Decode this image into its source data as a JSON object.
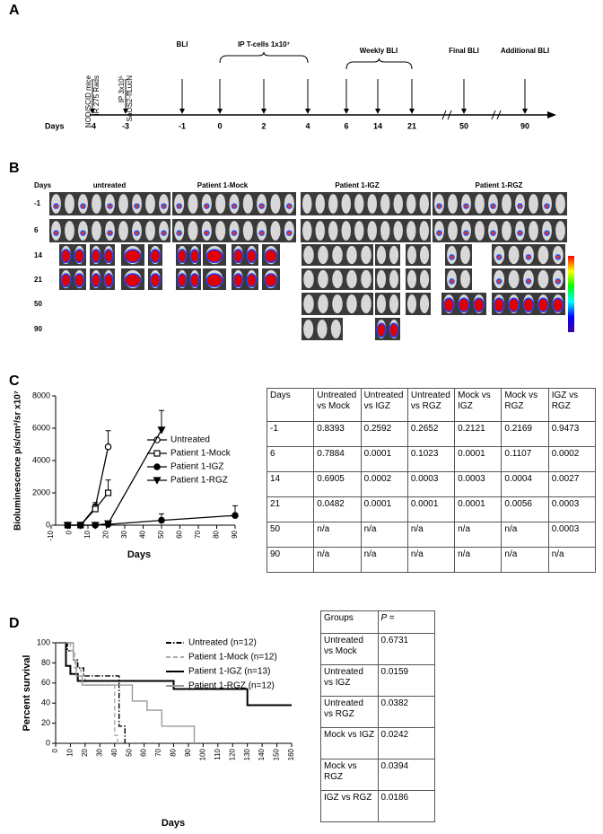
{
  "panels": [
    "A",
    "B",
    "C",
    "D"
  ],
  "timeline": {
    "events": [
      [
        "NOD/SCID mice",
        "IR 275 Rads"
      ],
      [
        "IP 3x10⁵",
        "SaOS2-ffLucN"
      ]
    ],
    "labels": [
      "BLI",
      "IP T-cells 1x10⁷",
      "Weekly BLI",
      "Final BLI",
      "Additional BLI"
    ],
    "axis_label": "Days",
    "days": [
      "-4",
      "-3",
      "-1",
      "0",
      "2",
      "4",
      "6",
      "14",
      "21",
      "50",
      "90"
    ]
  },
  "imaging": {
    "header": "Days",
    "groups": [
      "untreated",
      "Patient 1-Mock",
      "Patient 1-IGZ",
      "Patient 1-RGZ"
    ],
    "days": [
      "-1",
      "6",
      "14",
      "21",
      "50",
      "90"
    ]
  },
  "chart_data": [
    {
      "type": "line",
      "xlabel": "Days",
      "ylabel": "Bioluminescence p/s/cm²/sr x10⁷",
      "x": [
        -1,
        6,
        14,
        21,
        50,
        90
      ],
      "xlim": [
        -10,
        90
      ],
      "xticks": [
        -10,
        0,
        10,
        20,
        30,
        40,
        50,
        60,
        70,
        80,
        90
      ],
      "ylim": [
        0,
        8000
      ],
      "yticks": [
        0,
        2000,
        4000,
        6000,
        8000
      ],
      "series": [
        {
          "name": "Untreated",
          "color": "#000000",
          "marker": "open-circle",
          "values": [
            0,
            0,
            1100,
            4850,
            null,
            null
          ],
          "errors": [
            0,
            0,
            300,
            1000,
            null,
            null
          ]
        },
        {
          "name": "Patient 1-Mock",
          "color": "#000000",
          "marker": "open-square",
          "values": [
            0,
            0,
            1000,
            2000,
            null,
            null
          ],
          "errors": [
            0,
            0,
            300,
            800,
            null,
            null
          ]
        },
        {
          "name": "Patient 1-IGZ",
          "color": "#000000",
          "marker": "filled-circle",
          "values": [
            0,
            0,
            0,
            50,
            300,
            600
          ],
          "errors": [
            0,
            0,
            0,
            100,
            400,
            600
          ]
        },
        {
          "name": "Patient 1-RGZ",
          "color": "#000000",
          "marker": "filled-triangle",
          "values": [
            0,
            0,
            0,
            100,
            5900,
            null
          ],
          "errors": [
            0,
            0,
            0,
            100,
            1200,
            null
          ]
        }
      ]
    },
    {
      "type": "step",
      "xlabel": "Days",
      "ylabel": "Percent survival",
      "xlim": [
        0,
        160
      ],
      "xticks": [
        0,
        10,
        20,
        30,
        40,
        50,
        60,
        70,
        80,
        90,
        100,
        110,
        120,
        130,
        140,
        150,
        160
      ],
      "ylim": [
        0,
        100
      ],
      "yticks": [
        0,
        20,
        40,
        60,
        80,
        100
      ],
      "series": [
        {
          "name": "Untreated (n=12)",
          "color": "#000000",
          "linestyle": "dashdot",
          "x": [
            0,
            8,
            12,
            15,
            19,
            43,
            47
          ],
          "values": [
            100,
            92,
            83,
            75,
            67,
            17,
            0
          ]
        },
        {
          "name": "Patient 1-Mock (n=12)",
          "color": "#aaaaaa",
          "linestyle": "dashed",
          "x": [
            0,
            10,
            13,
            17,
            20,
            40,
            42
          ],
          "values": [
            100,
            92,
            75,
            67,
            58,
            8,
            0
          ]
        },
        {
          "name": "Patient 1-IGZ (n=13)",
          "color": "#000000",
          "linestyle": "solid",
          "x": [
            0,
            7,
            10,
            15,
            80,
            130,
            160
          ],
          "values": [
            100,
            77,
            69,
            62,
            54,
            38,
            38
          ]
        },
        {
          "name": "Patient 1-RGZ (n=12)",
          "color": "#999999",
          "linestyle": "solid",
          "x": [
            0,
            12,
            14,
            18,
            42,
            52,
            62,
            72,
            94
          ],
          "values": [
            100,
            83,
            67,
            58,
            58,
            42,
            33,
            17,
            0
          ]
        }
      ]
    }
  ],
  "table_c": {
    "header": [
      "Days",
      "Untreated vs Mock",
      "Untreated vs IGZ",
      "Untreated vs RGZ",
      "Mock vs IGZ",
      "Mock vs RGZ",
      "IGZ vs RGZ"
    ],
    "rows": [
      [
        "-1",
        "0.8393",
        "0.2592",
        "0.2652",
        "0.2121",
        "0.2169",
        "0.9473"
      ],
      [
        "6",
        "0.7884",
        "0.0001",
        "0.1023",
        "0.0001",
        "0.1107",
        "0.0002"
      ],
      [
        "14",
        "0.6905",
        "0.0002",
        "0.0003",
        "0.0003",
        "0.0004",
        "0.0027"
      ],
      [
        "21",
        "0.0482",
        "0.0001",
        "0.0001",
        "0.0001",
        "0.0056",
        "0.0003"
      ],
      [
        "50",
        "n/a",
        "n/a",
        "n/a",
        "n/a",
        "n/a",
        "0.0003"
      ],
      [
        "90",
        "n/a",
        "n/a",
        "n/a",
        "n/a",
        "n/a",
        "n/a"
      ]
    ]
  },
  "table_d": {
    "header": [
      "Groups",
      "P ="
    ],
    "rows": [
      [
        "Untreated vs Mock",
        "0.6731"
      ],
      [
        "Untreated vs IGZ",
        "0.0159"
      ],
      [
        "Untreated vs RGZ",
        "0.0382"
      ],
      [
        "Mock vs IGZ",
        "0.0242"
      ],
      [
        "Mock vs RGZ",
        "0.0394"
      ],
      [
        "IGZ vs RGZ",
        "0.0186"
      ]
    ]
  }
}
